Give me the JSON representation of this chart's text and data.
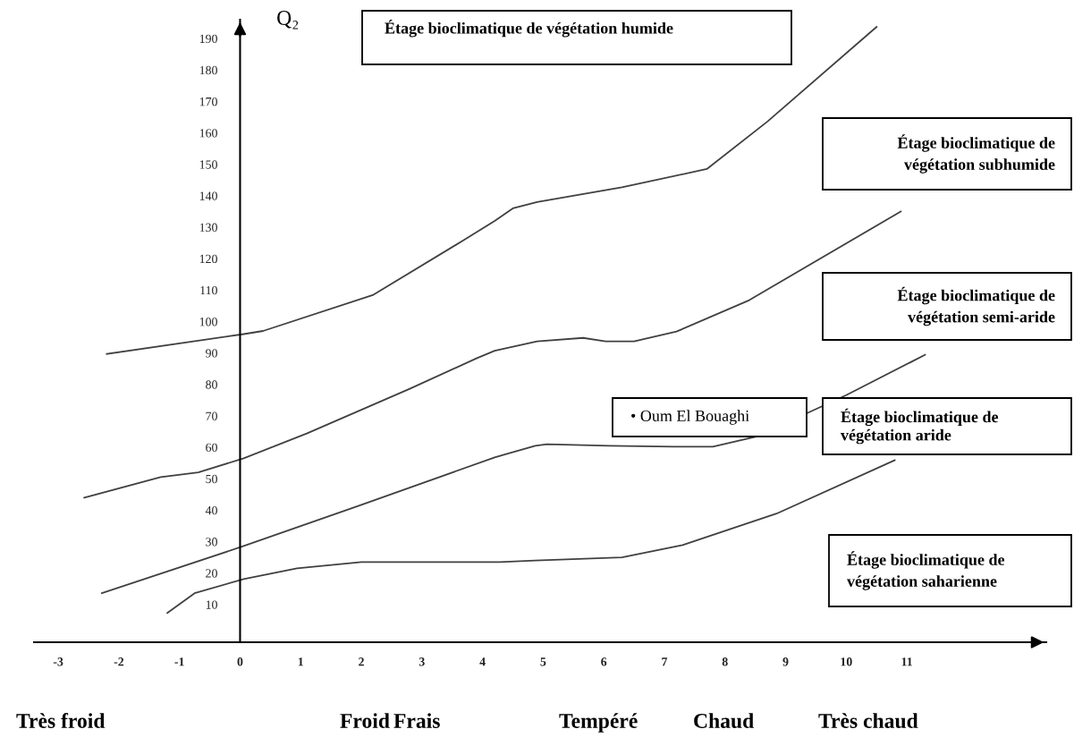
{
  "chart_data": {
    "type": "line",
    "ylabel": "Q₂",
    "xlim": [
      -3.4,
      13.3
    ],
    "ylim": [
      -2,
      196
    ],
    "xticks": [
      -3,
      -2,
      -1,
      0,
      1,
      2,
      3,
      4,
      5,
      6,
      7,
      8,
      9,
      10,
      11
    ],
    "yticks": [
      10,
      20,
      30,
      40,
      50,
      60,
      70,
      80,
      90,
      100,
      110,
      120,
      130,
      140,
      150,
      160,
      170,
      180,
      190
    ],
    "grid": false,
    "marker": "none",
    "line_style": "solid",
    "series": [
      {
        "color": "#404040",
        "x": [
          -2.2,
          0.06,
          0.38,
          2.2,
          3.7,
          4.2,
          4.5,
          4.9,
          6.3,
          7.7,
          8.7,
          10.5
        ],
        "values": [
          89.7,
          96,
          97,
          108.5,
          126,
          132,
          136,
          138,
          142.7,
          148.5,
          163.6,
          193.7
        ]
      },
      {
        "color": "#404040",
        "x": [
          -2.57,
          -1.31,
          -0.69,
          0.06,
          1.1,
          2.8,
          3.9,
          4.2,
          4.9,
          5.66,
          6.03,
          6.5,
          7.2,
          8.4,
          10.9
        ],
        "values": [
          44,
          50.5,
          52,
          56.5,
          64.4,
          78.6,
          88.3,
          90.7,
          93.7,
          94.8,
          93.7,
          93.7,
          96.8,
          106.8,
          135
        ]
      },
      {
        "color": "#404040",
        "x": [
          -2.28,
          0.06,
          1.96,
          4.2,
          4.87,
          5.06,
          6.09,
          7.16,
          7.8,
          8.5,
          10.0,
          11.3
        ],
        "values": [
          13.6,
          28.6,
          41.4,
          56.8,
          60.5,
          61,
          60.5,
          60.2,
          60.2,
          63.3,
          76.6,
          89.4
        ]
      },
      {
        "color": "#404040",
        "x": [
          -1.2,
          -0.75,
          0.06,
          0.94,
          2.0,
          4.28,
          4.87,
          6.3,
          7.3,
          8.85,
          10.8
        ],
        "values": [
          7.3,
          13.6,
          18.1,
          21.5,
          23.5,
          23.5,
          24,
          25,
          28.9,
          38.9,
          55.9
        ]
      }
    ],
    "annotations": [
      "Étage bioclimatique de végétation humide",
      "Étage bioclimatique de\nvégétation subhumide",
      "Étage bioclimatique de\nvégétation semi-aride",
      "• Oum El Bouaghi",
      "Étage bioclimatique de\nvégétation aride",
      "Étage bioclimatique de\nvégétation saharienne",
      "Très froid",
      "Froid",
      "Frais",
      "Tempéré",
      "Chaud",
      "Très chaud"
    ]
  }
}
